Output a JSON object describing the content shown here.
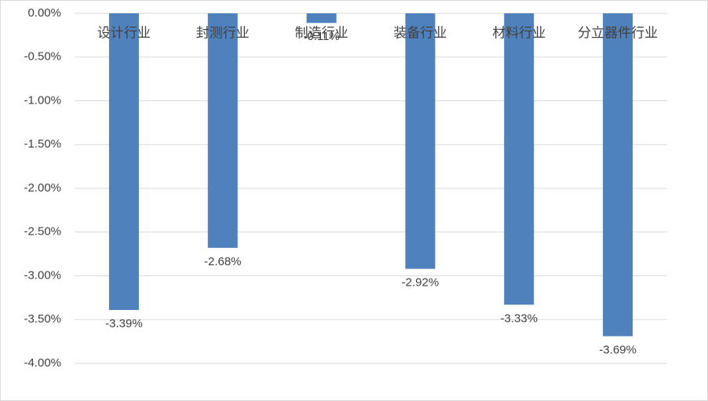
{
  "chart_data": {
    "type": "bar",
    "categories": [
      "设计行业",
      "封测行业",
      "制造行业",
      "装备行业",
      "材料行业",
      "分立器件行业"
    ],
    "values": [
      -3.39,
      -2.68,
      -0.11,
      -2.92,
      -3.33,
      -3.69
    ],
    "value_labels": [
      "-3.39%",
      "-2.68%",
      "-0.11%",
      "-2.92%",
      "-3.33%",
      "-3.69%"
    ],
    "color": "#4f81bd",
    "ylim": [
      -4,
      0
    ],
    "yticks": [
      {
        "value": 0,
        "label": "0.00%"
      },
      {
        "value": -0.5,
        "label": "-0.50%"
      },
      {
        "value": -1,
        "label": "-1.00%"
      },
      {
        "value": -1.5,
        "label": "-1.50%"
      },
      {
        "value": -2,
        "label": "-2.00%"
      },
      {
        "value": -2.5,
        "label": "-2.50%"
      },
      {
        "value": -3,
        "label": "-3.00%"
      },
      {
        "value": -3.5,
        "label": "-3.50%"
      },
      {
        "value": -4,
        "label": "-4.00%"
      }
    ],
    "grid": true
  }
}
